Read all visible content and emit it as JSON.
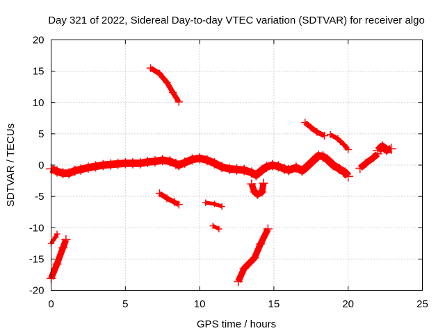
{
  "chart_data": {
    "type": "scatter",
    "title": "Day 321 of 2022, Sidereal Day-to-day VTEC variation (SDTVAR) for receiver algo",
    "xlabel": "GPS time / hours",
    "ylabel": "SDTVAR / TECUs",
    "xlim": [
      0,
      25
    ],
    "ylim": [
      -20,
      20
    ],
    "xticks": [
      0,
      5,
      10,
      15,
      20,
      25
    ],
    "yticks": [
      -20,
      -15,
      -10,
      -5,
      0,
      5,
      10,
      15,
      20
    ],
    "xtick_labels": [
      "0",
      "5",
      "10",
      "15",
      "20",
      "25"
    ],
    "ytick_labels": [
      "-20",
      "-15",
      "-10",
      "-5",
      "0",
      "5",
      "10",
      "15",
      "20"
    ],
    "grid": true,
    "marker": "+",
    "color": "#ff0000",
    "series": [
      {
        "name": "main-band",
        "width": 1.2,
        "points": [
          [
            0.0,
            -0.6
          ],
          [
            0.4,
            -1.0
          ],
          [
            0.8,
            -1.3
          ],
          [
            1.2,
            -1.3
          ],
          [
            1.6,
            -0.9
          ],
          [
            2.0,
            -0.7
          ],
          [
            2.5,
            -0.4
          ],
          [
            3.0,
            -0.2
          ],
          [
            3.5,
            0.0
          ],
          [
            4.0,
            0.1
          ],
          [
            4.5,
            0.2
          ],
          [
            5.0,
            0.3
          ],
          [
            5.5,
            0.3
          ],
          [
            6.0,
            0.3
          ],
          [
            6.5,
            0.5
          ],
          [
            7.0,
            0.6
          ],
          [
            7.5,
            0.8
          ],
          [
            8.0,
            0.6
          ],
          [
            8.4,
            0.2
          ],
          [
            8.6,
            0.0
          ],
          [
            9.0,
            0.4
          ],
          [
            9.5,
            0.9
          ],
          [
            10.0,
            1.1
          ],
          [
            10.5,
            0.8
          ],
          [
            11.0,
            0.3
          ],
          [
            11.5,
            -0.3
          ],
          [
            12.0,
            -0.6
          ],
          [
            12.5,
            -0.7
          ],
          [
            13.0,
            -0.8
          ],
          [
            13.5,
            -1.2
          ],
          [
            13.8,
            -1.6
          ],
          [
            14.2,
            -0.8
          ],
          [
            14.5,
            -0.3
          ],
          [
            14.9,
            0.0
          ],
          [
            15.3,
            -0.2
          ],
          [
            15.7,
            -0.6
          ],
          [
            16.0,
            -0.8
          ],
          [
            16.5,
            -0.4
          ],
          [
            16.9,
            -0.9
          ],
          [
            17.2,
            -0.3
          ],
          [
            17.6,
            0.6
          ],
          [
            18.0,
            1.5
          ],
          [
            18.3,
            1.4
          ],
          [
            18.6,
            0.9
          ],
          [
            19.0,
            0.0
          ],
          [
            19.4,
            -0.6
          ],
          [
            19.8,
            -1.2
          ],
          [
            20.0,
            -1.8
          ]
        ]
      },
      {
        "name": "tail-1",
        "width": 1.0,
        "points": [
          [
            20.8,
            -0.5
          ],
          [
            21.2,
            0.3
          ],
          [
            21.7,
            1.2
          ],
          [
            22.0,
            1.8
          ]
        ]
      },
      {
        "name": "tail-2",
        "width": 1.2,
        "points": [
          [
            22.0,
            2.3
          ],
          [
            22.3,
            3.0
          ],
          [
            22.6,
            2.4
          ],
          [
            22.9,
            2.6
          ]
        ]
      },
      {
        "name": "dip-13-14",
        "width": 1.0,
        "points": [
          [
            13.5,
            -3.0
          ],
          [
            13.7,
            -4.3
          ],
          [
            13.9,
            -4.7
          ],
          [
            14.2,
            -4.3
          ],
          [
            14.3,
            -2.9
          ]
        ]
      },
      {
        "name": "arc-upper",
        "width": 0.8,
        "points": [
          [
            6.7,
            15.5
          ],
          [
            7.3,
            14.6
          ],
          [
            7.8,
            13.2
          ],
          [
            8.2,
            11.6
          ],
          [
            8.6,
            10.1
          ]
        ]
      },
      {
        "name": "arc-mid-neg",
        "width": 0.8,
        "points": [
          [
            7.3,
            -4.5
          ],
          [
            7.8,
            -5.3
          ],
          [
            8.3,
            -5.9
          ],
          [
            8.6,
            -6.3
          ]
        ]
      },
      {
        "name": "arc-11",
        "width": 0.6,
        "points": [
          [
            10.4,
            -6.0
          ],
          [
            11.0,
            -6.2
          ],
          [
            11.5,
            -6.6
          ]
        ]
      },
      {
        "name": "arc-11b",
        "width": 0.6,
        "points": [
          [
            10.9,
            -9.7
          ],
          [
            11.3,
            -10.2
          ]
        ]
      },
      {
        "name": "arc-13",
        "width": 1.0,
        "points": [
          [
            12.6,
            -18.6
          ],
          [
            13.0,
            -16.5
          ],
          [
            13.7,
            -14.8
          ],
          [
            14.1,
            -12.6
          ],
          [
            14.6,
            -10.2
          ]
        ]
      },
      {
        "name": "arc-00-a",
        "width": 1.0,
        "points": [
          [
            0.0,
            -18.1
          ],
          [
            0.4,
            -15.8
          ],
          [
            0.8,
            -13.2
          ],
          [
            1.0,
            -11.9
          ]
        ]
      },
      {
        "name": "arc-00-b",
        "width": 0.6,
        "points": [
          [
            0.0,
            -12.5
          ],
          [
            0.3,
            -11.5
          ],
          [
            0.4,
            -11.0
          ]
        ]
      },
      {
        "name": "arc-17",
        "width": 0.8,
        "points": [
          [
            17.1,
            6.8
          ],
          [
            17.5,
            6.0
          ],
          [
            17.9,
            5.3
          ],
          [
            18.4,
            4.7
          ]
        ]
      },
      {
        "name": "arc-19",
        "width": 0.7,
        "points": [
          [
            18.8,
            4.9
          ],
          [
            19.3,
            4.2
          ],
          [
            19.7,
            3.3
          ],
          [
            20.0,
            2.5
          ]
        ]
      }
    ]
  }
}
